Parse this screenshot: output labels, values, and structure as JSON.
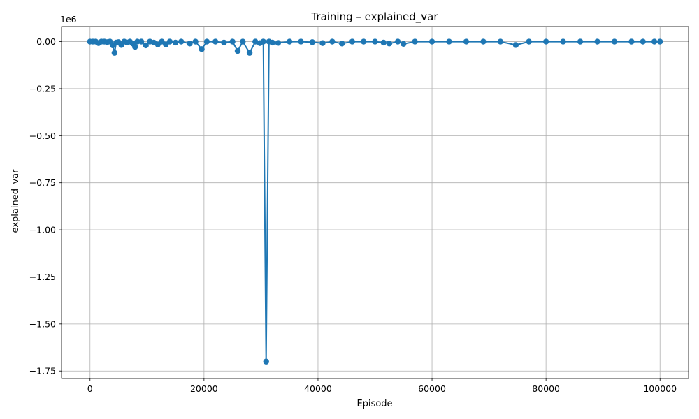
{
  "chart_data": {
    "type": "line",
    "title": "Training – explained_var",
    "xlabel": "Episode",
    "ylabel": "explained_var",
    "y_offset_label": "1e6",
    "xlim": [
      -5000,
      105000
    ],
    "ylim": [
      -1790000,
      80000
    ],
    "x_ticks": [
      0,
      20000,
      40000,
      60000,
      80000,
      100000
    ],
    "x_tick_labels": [
      "0",
      "20000",
      "40000",
      "60000",
      "80000",
      "100000"
    ],
    "y_ticks": [
      0,
      -250000,
      -500000,
      -750000,
      -1000000,
      -1250000,
      -1500000,
      -1750000
    ],
    "y_tick_labels": [
      "0.00",
      "−0.25",
      "−0.50",
      "−0.75",
      "−1.00",
      "−1.25",
      "−1.50",
      "−1.75"
    ],
    "grid": true,
    "color": "#1f77b4",
    "series": [
      {
        "x": [
          0,
          500,
          1000,
          1500,
          2000,
          2500,
          3000,
          3500,
          4000,
          4300,
          4600,
          5000,
          5500,
          6000,
          6500,
          7000,
          7500,
          7900,
          8300,
          9000,
          9800,
          10500,
          11200,
          11900,
          12600,
          13300,
          14000,
          15000,
          16000,
          17500,
          18500,
          19600,
          20500,
          22000,
          23500,
          25000,
          25900,
          26800,
          28000,
          29000,
          29800,
          30400,
          30900,
          31400,
          32000,
          33000,
          35000,
          37000,
          39000,
          40800,
          42500,
          44200,
          46000,
          48000,
          50000,
          51500,
          52500,
          54000,
          55000,
          57000,
          60000,
          63000,
          66000,
          69000,
          72000,
          74700,
          77000,
          80000,
          83000,
          86000,
          89000,
          92000,
          95000,
          97000,
          99000,
          100000
        ],
        "values": [
          0,
          0,
          0,
          -8000,
          0,
          0,
          -3000,
          0,
          -20000,
          -60000,
          -5000,
          -3000,
          -18000,
          0,
          -5000,
          0,
          -10000,
          -28000,
          0,
          0,
          -20000,
          0,
          -5000,
          -15000,
          0,
          -15000,
          0,
          -5000,
          0,
          -10000,
          0,
          -40000,
          0,
          0,
          -5000,
          0,
          -50000,
          0,
          -60000,
          0,
          -8000,
          0,
          -1700000,
          0,
          -5000,
          -7000,
          0,
          0,
          -3000,
          -8000,
          0,
          -10000,
          0,
          0,
          0,
          -5000,
          -10000,
          0,
          -12000,
          0,
          0,
          0,
          0,
          0,
          0,
          -18000,
          0,
          0,
          0,
          0,
          0,
          0,
          0,
          0,
          0,
          0
        ]
      }
    ]
  }
}
